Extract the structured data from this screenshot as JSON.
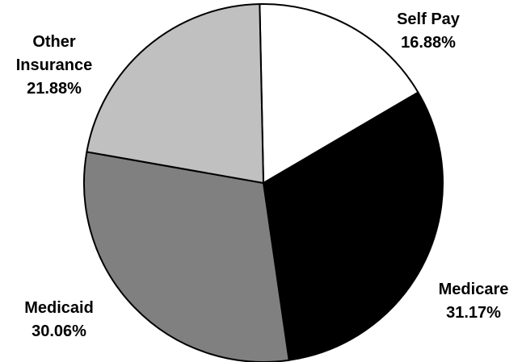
{
  "chart_data": {
    "type": "pie",
    "title": "",
    "legend": "none",
    "slices": [
      {
        "label_lines": [
          "Self Pay"
        ],
        "value": 16.88,
        "value_text": "16.88%",
        "color": "#ffffff"
      },
      {
        "label_lines": [
          "Medicare"
        ],
        "value": 31.17,
        "value_text": "31.17%",
        "color": "#000000"
      },
      {
        "label_lines": [
          "Medicaid"
        ],
        "value": 30.06,
        "value_text": "30.06%",
        "color": "#808080"
      },
      {
        "label_lines": [
          "Other",
          "Insurance"
        ],
        "value": 21.88,
        "value_text": "21.88%",
        "color": "#c0c0c0"
      }
    ]
  }
}
